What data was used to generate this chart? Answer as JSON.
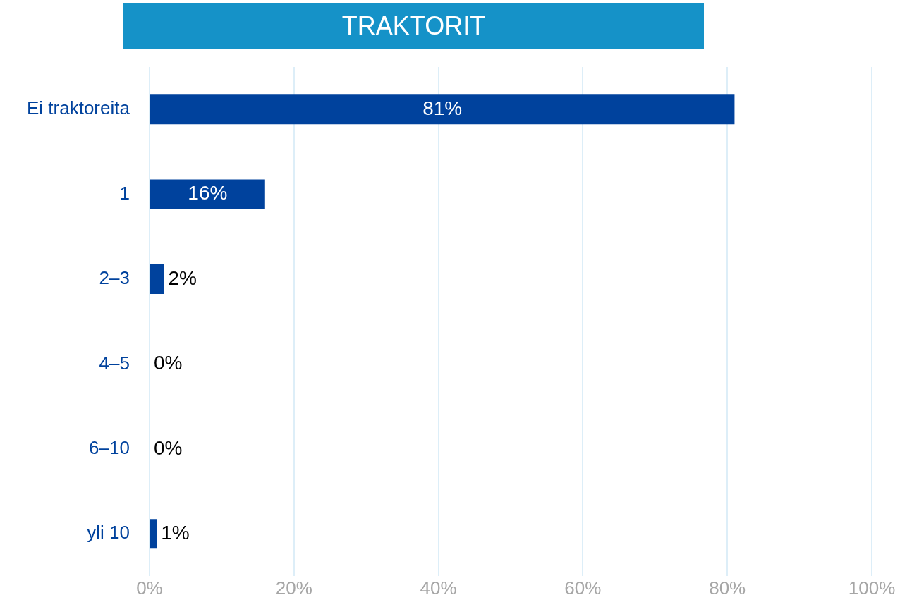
{
  "chart_data": {
    "type": "bar",
    "orientation": "horizontal",
    "title": "TRAKTORIT",
    "categories": [
      "Ei traktoreita",
      "1",
      "2–3",
      "4–5",
      "6–10",
      "yli 10"
    ],
    "values": [
      81,
      16,
      2,
      0,
      0,
      1
    ],
    "value_labels": [
      "81%",
      "16%",
      "2%",
      "0%",
      "0%",
      "1%"
    ],
    "color": "#00429d",
    "xlim": [
      0,
      100
    ],
    "xticks": [
      {
        "value": 0,
        "label": "0%"
      },
      {
        "value": 20,
        "label": "20%"
      },
      {
        "value": 40,
        "label": "40%"
      },
      {
        "value": 60,
        "label": "60%"
      },
      {
        "value": 80,
        "label": "80%"
      },
      {
        "value": 100,
        "label": "100%"
      }
    ],
    "grid": "x",
    "legend": false
  }
}
